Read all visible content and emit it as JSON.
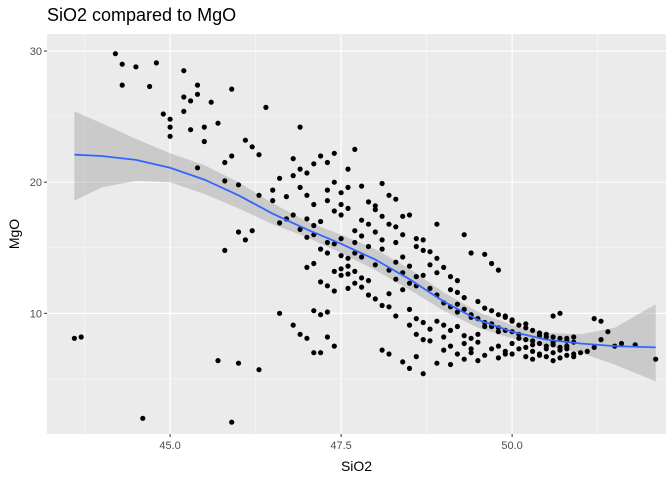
{
  "chart_data": {
    "type": "scatter",
    "title": "SiO2 compared to MgO",
    "xlabel": "SiO2",
    "ylabel": "MgO",
    "xlim": [
      43.2,
      52.25
    ],
    "ylim": [
      0.8,
      31.3
    ],
    "xticks": [
      45.0,
      47.5,
      50.0
    ],
    "xtick_labels": [
      "45.0",
      "47.5",
      "50.0"
    ],
    "yticks": [
      10,
      20,
      30
    ],
    "ytick_labels": [
      "10",
      "20",
      "30"
    ],
    "grid": true,
    "colors": {
      "panel": "#ebebeb",
      "grid_major": "#ffffff",
      "point": "#000000",
      "smooth_line": "#3366ff",
      "ribbon": "#999999"
    },
    "points": [
      [
        43.6,
        8.1
      ],
      [
        43.7,
        8.2
      ],
      [
        44.2,
        29.8
      ],
      [
        44.3,
        27.4
      ],
      [
        44.3,
        29.0
      ],
      [
        44.5,
        28.8
      ],
      [
        44.7,
        27.3
      ],
      [
        44.8,
        29.1
      ],
      [
        44.6,
        2.0
      ],
      [
        44.9,
        25.2
      ],
      [
        45.0,
        24.8
      ],
      [
        45.0,
        23.5
      ],
      [
        45.0,
        24.2
      ],
      [
        45.2,
        28.5
      ],
      [
        45.2,
        26.5
      ],
      [
        45.3,
        26.2
      ],
      [
        45.4,
        27.4
      ],
      [
        45.3,
        24.0
      ],
      [
        45.4,
        21.1
      ],
      [
        45.5,
        24.2
      ],
      [
        45.6,
        26.1
      ],
      [
        45.7,
        24.5
      ],
      [
        45.8,
        21.5
      ],
      [
        45.9,
        27.1
      ],
      [
        45.4,
        26.7
      ],
      [
        45.2,
        25.4
      ],
      [
        45.5,
        23.1
      ],
      [
        45.8,
        14.8
      ],
      [
        45.8,
        20.1
      ],
      [
        45.9,
        22.0
      ],
      [
        46.0,
        19.8
      ],
      [
        46.1,
        23.2
      ],
      [
        46.2,
        22.7
      ],
      [
        46.3,
        22.1
      ],
      [
        46.4,
        25.7
      ],
      [
        46.2,
        16.3
      ],
      [
        46.1,
        15.6
      ],
      [
        46.3,
        19.0
      ],
      [
        46.0,
        16.2
      ],
      [
        45.7,
        6.4
      ],
      [
        45.9,
        1.7
      ],
      [
        46.0,
        6.2
      ],
      [
        46.3,
        5.7
      ],
      [
        46.5,
        18.6
      ],
      [
        46.6,
        16.9
      ],
      [
        46.5,
        19.4
      ],
      [
        46.7,
        17.2
      ],
      [
        46.8,
        21.8
      ],
      [
        46.9,
        21.0
      ],
      [
        46.9,
        24.2
      ],
      [
        46.6,
        10.0
      ],
      [
        46.8,
        9.1
      ],
      [
        46.9,
        8.4
      ],
      [
        47.1,
        10.2
      ],
      [
        47.2,
        9.9
      ],
      [
        47.3,
        10.1
      ],
      [
        47.0,
        8.1
      ],
      [
        47.1,
        7.0
      ],
      [
        47.2,
        7.0
      ],
      [
        47.3,
        8.2
      ],
      [
        47.4,
        7.5
      ],
      [
        47.5,
        13.4
      ],
      [
        47.6,
        13.6
      ],
      [
        47.7,
        13.2
      ],
      [
        47.8,
        12.7
      ],
      [
        47.9,
        12.5
      ],
      [
        47.3,
        18.6
      ],
      [
        47.4,
        20.0
      ],
      [
        47.5,
        19.2
      ],
      [
        47.6,
        18.0
      ],
      [
        47.7,
        22.5
      ],
      [
        47.8,
        19.7
      ],
      [
        47.9,
        18.5
      ],
      [
        48.0,
        17.9
      ],
      [
        48.1,
        19.9
      ],
      [
        48.2,
        19.0
      ],
      [
        48.3,
        18.7
      ],
      [
        47.2,
        22.0
      ],
      [
        47.3,
        21.5
      ],
      [
        47.4,
        22.2
      ],
      [
        47.6,
        21.0
      ],
      [
        47.0,
        19.0
      ],
      [
        47.1,
        18.3
      ],
      [
        47.5,
        17.5
      ],
      [
        47.0,
        17.2
      ],
      [
        47.1,
        16.7
      ],
      [
        47.3,
        15.4
      ],
      [
        47.5,
        15.7
      ],
      [
        47.7,
        15.4
      ],
      [
        47.9,
        15.1
      ],
      [
        48.1,
        14.9
      ],
      [
        48.3,
        15.4
      ],
      [
        48.0,
        13.7
      ],
      [
        48.2,
        13.3
      ],
      [
        48.4,
        13.1
      ],
      [
        48.5,
        12.3
      ],
      [
        48.6,
        12.1
      ],
      [
        48.8,
        13.7
      ],
      [
        48.9,
        14.2
      ],
      [
        48.4,
        17.4
      ],
      [
        48.5,
        17.5
      ],
      [
        48.6,
        15.7
      ],
      [
        48.7,
        15.6
      ],
      [
        48.9,
        16.8
      ],
      [
        48.8,
        14.7
      ],
      [
        49.0,
        13.5
      ],
      [
        49.1,
        12.8
      ],
      [
        49.2,
        12.5
      ],
      [
        49.3,
        16.0
      ],
      [
        49.4,
        14.6
      ],
      [
        49.6,
        14.5
      ],
      [
        49.7,
        13.8
      ],
      [
        49.8,
        13.3
      ],
      [
        48.2,
        10.5
      ],
      [
        48.3,
        9.8
      ],
      [
        48.5,
        9.1
      ],
      [
        48.6,
        8.4
      ],
      [
        48.7,
        8.0
      ],
      [
        48.8,
        7.9
      ],
      [
        49.0,
        8.2
      ],
      [
        49.1,
        8.7
      ],
      [
        49.2,
        9.0
      ],
      [
        49.3,
        7.7
      ],
      [
        49.4,
        7.3
      ],
      [
        49.5,
        7.8
      ],
      [
        48.1,
        7.2
      ],
      [
        48.2,
        6.9
      ],
      [
        48.4,
        6.3
      ],
      [
        48.5,
        5.8
      ],
      [
        48.6,
        6.7
      ],
      [
        48.7,
        5.4
      ],
      [
        48.9,
        6.2
      ],
      [
        49.0,
        7.2
      ],
      [
        49.1,
        6.1
      ],
      [
        49.3,
        6.5
      ],
      [
        49.4,
        7.0
      ],
      [
        49.6,
        9.3
      ],
      [
        49.7,
        9.0
      ],
      [
        49.8,
        8.6
      ],
      [
        49.9,
        9.8
      ],
      [
        50.0,
        9.5
      ],
      [
        50.1,
        8.1
      ],
      [
        50.2,
        9.2
      ],
      [
        50.3,
        7.9
      ],
      [
        50.4,
        8.3
      ],
      [
        50.5,
        8.2
      ],
      [
        50.6,
        7.8
      ],
      [
        50.7,
        7.4
      ],
      [
        50.8,
        8.1
      ],
      [
        50.9,
        8.2
      ],
      [
        50.6,
        9.8
      ],
      [
        50.7,
        10.0
      ],
      [
        50.4,
        6.8
      ],
      [
        50.5,
        6.7
      ],
      [
        50.6,
        6.4
      ],
      [
        50.8,
        7.5
      ],
      [
        50.9,
        6.9
      ],
      [
        51.0,
        7.0
      ],
      [
        51.1,
        7.1
      ],
      [
        51.2,
        7.4
      ],
      [
        51.3,
        8.0
      ],
      [
        51.4,
        8.6
      ],
      [
        51.5,
        7.5
      ],
      [
        51.6,
        7.7
      ],
      [
        51.3,
        9.4
      ],
      [
        51.2,
        9.6
      ],
      [
        51.8,
        7.6
      ],
      [
        52.1,
        6.5
      ],
      [
        50.0,
        7.7
      ],
      [
        50.2,
        7.4
      ],
      [
        50.3,
        6.5
      ],
      [
        49.9,
        6.9
      ],
      [
        49.8,
        7.5
      ],
      [
        49.5,
        8.4
      ],
      [
        49.4,
        9.7
      ],
      [
        49.7,
        9.2
      ],
      [
        49.2,
        10.1
      ],
      [
        47.6,
        13.0
      ],
      [
        47.4,
        13.2
      ],
      [
        47.8,
        14.3
      ],
      [
        47.9,
        16.8
      ],
      [
        48.0,
        16.2
      ],
      [
        48.1,
        15.6
      ],
      [
        48.3,
        16.6
      ],
      [
        48.4,
        16.0
      ],
      [
        48.6,
        15.1
      ],
      [
        48.7,
        14.8
      ],
      [
        48.9,
        13.1
      ],
      [
        49.1,
        11.8
      ],
      [
        49.2,
        11.6
      ],
      [
        49.3,
        11.2
      ],
      [
        49.5,
        10.9
      ],
      [
        49.6,
        10.4
      ],
      [
        49.7,
        10.2
      ],
      [
        49.8,
        9.9
      ],
      [
        49.9,
        9.7
      ],
      [
        50.0,
        9.4
      ],
      [
        50.1,
        9.1
      ],
      [
        50.2,
        8.9
      ],
      [
        50.3,
        8.7
      ],
      [
        50.4,
        8.5
      ],
      [
        50.5,
        8.4
      ],
      [
        50.6,
        8.2
      ],
      [
        50.7,
        8.1
      ],
      [
        50.8,
        7.9
      ],
      [
        47.0,
        13.5
      ],
      [
        47.1,
        13.8
      ],
      [
        47.2,
        12.4
      ],
      [
        47.3,
        12.1
      ],
      [
        47.4,
        11.7
      ],
      [
        47.5,
        12.9
      ],
      [
        47.6,
        14.2
      ],
      [
        47.7,
        14.6
      ],
      [
        47.8,
        15.9
      ],
      [
        46.8,
        17.5
      ],
      [
        46.9,
        16.4
      ],
      [
        47.0,
        15.8
      ],
      [
        47.1,
        16.0
      ],
      [
        47.2,
        17.0
      ],
      [
        46.7,
        18.9
      ],
      [
        46.6,
        20.3
      ],
      [
        46.8,
        20.5
      ],
      [
        46.9,
        19.6
      ],
      [
        47.0,
        20.7
      ],
      [
        47.1,
        21.4
      ],
      [
        47.3,
        19.4
      ],
      [
        47.4,
        17.8
      ],
      [
        47.5,
        18.3
      ],
      [
        47.6,
        19.6
      ],
      [
        47.7,
        16.3
      ],
      [
        47.8,
        17.1
      ],
      [
        48.0,
        18.2
      ],
      [
        48.1,
        17.4
      ],
      [
        48.2,
        16.8
      ],
      [
        48.3,
        13.9
      ],
      [
        48.4,
        14.3
      ],
      [
        48.5,
        13.6
      ],
      [
        48.6,
        12.8
      ],
      [
        48.7,
        12.9
      ],
      [
        48.8,
        11.9
      ],
      [
        48.9,
        11.4
      ],
      [
        49.0,
        10.8
      ],
      [
        49.1,
        10.5
      ],
      [
        49.2,
        10.7
      ],
      [
        49.3,
        10.3
      ],
      [
        49.4,
        9.9
      ],
      [
        49.5,
        9.6
      ],
      [
        49.6,
        9.0
      ],
      [
        49.8,
        8.9
      ],
      [
        49.9,
        8.7
      ],
      [
        50.0,
        8.6
      ],
      [
        50.1,
        8.4
      ],
      [
        50.2,
        8.0
      ],
      [
        50.3,
        7.6
      ],
      [
        50.4,
        7.7
      ],
      [
        50.5,
        7.5
      ],
      [
        50.6,
        7.6
      ],
      [
        50.7,
        7.2
      ],
      [
        50.8,
        6.8
      ],
      [
        50.9,
        6.7
      ],
      [
        47.2,
        14.9
      ],
      [
        47.3,
        14.6
      ],
      [
        47.4,
        15.3
      ],
      [
        47.5,
        14.4
      ],
      [
        47.6,
        11.9
      ],
      [
        47.7,
        12.3
      ],
      [
        47.8,
        12.0
      ],
      [
        47.9,
        11.4
      ],
      [
        48.0,
        11.1
      ],
      [
        48.1,
        10.6
      ],
      [
        48.2,
        11.5
      ],
      [
        48.3,
        12.6
      ],
      [
        48.4,
        11.8
      ],
      [
        48.5,
        10.3
      ],
      [
        48.6,
        9.6
      ],
      [
        48.7,
        9.3
      ],
      [
        48.8,
        8.8
      ],
      [
        48.9,
        9.4
      ],
      [
        49.0,
        9.1
      ],
      [
        49.1,
        7.5
      ],
      [
        49.2,
        6.9
      ],
      [
        49.3,
        8.3
      ],
      [
        49.4,
        8.1
      ],
      [
        49.5,
        6.4
      ],
      [
        49.6,
        6.8
      ],
      [
        49.7,
        7.3
      ],
      [
        49.8,
        6.6
      ],
      [
        49.9,
        7.1
      ],
      [
        50.0,
        6.9
      ],
      [
        50.1,
        7.3
      ],
      [
        50.2,
        6.7
      ],
      [
        50.3,
        7.1
      ],
      [
        50.4,
        6.9
      ],
      [
        50.5,
        7.3
      ],
      [
        50.6,
        7.0
      ],
      [
        50.7,
        6.6
      ],
      [
        50.8,
        7.3
      ],
      [
        50.9,
        7.8
      ]
    ],
    "smooth": {
      "x": [
        43.6,
        44.0,
        44.5,
        45.0,
        45.5,
        46.0,
        46.5,
        47.0,
        47.5,
        48.0,
        48.5,
        49.0,
        49.5,
        50.0,
        50.5,
        51.0,
        51.5,
        52.1
      ],
      "y": [
        22.1,
        22.0,
        21.7,
        21.1,
        20.2,
        19.0,
        17.6,
        16.4,
        15.3,
        14.1,
        12.6,
        10.9,
        9.5,
        8.6,
        8.0,
        7.7,
        7.5,
        7.4
      ],
      "lower": [
        18.6,
        19.6,
        20.1,
        20.0,
        19.1,
        18.0,
        16.8,
        15.8,
        14.6,
        13.3,
        11.8,
        10.2,
        8.9,
        8.1,
        7.5,
        7.0,
        6.1,
        4.8
      ],
      "upper": [
        25.4,
        24.5,
        23.3,
        22.2,
        21.3,
        20.0,
        18.4,
        17.0,
        16.0,
        14.9,
        13.4,
        11.6,
        10.1,
        9.1,
        8.5,
        8.4,
        8.9,
        10.7
      ]
    }
  }
}
